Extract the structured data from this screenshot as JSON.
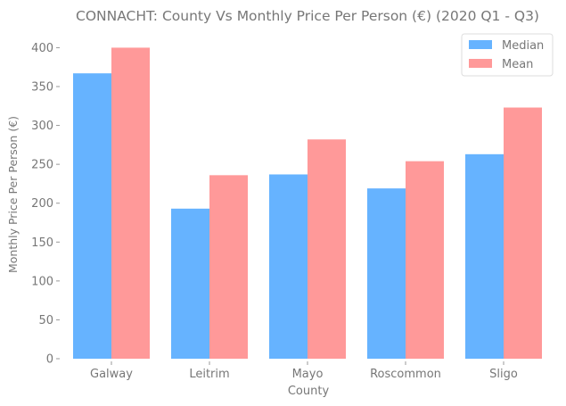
{
  "chart_data": {
    "type": "bar",
    "title": "CONNACHT: County Vs Monthly Price Per Person (€) (2020 Q1 - Q3)",
    "xlabel": "County",
    "ylabel": "Monthly Price Per Person (€)",
    "categories": [
      "Galway",
      "Leitrim",
      "Mayo",
      "Roscommon",
      "Sligo"
    ],
    "series": [
      {
        "name": "Median",
        "color": "#66b3ff",
        "values": [
          367,
          193,
          237,
          219,
          263
        ]
      },
      {
        "name": "Mean",
        "color": "#ff9999",
        "values": [
          400,
          236,
          282,
          254,
          323
        ]
      }
    ],
    "ylim": [
      0,
      420
    ],
    "yticks": [
      0,
      50,
      100,
      150,
      200,
      250,
      300,
      350,
      400
    ],
    "grid": false,
    "legend_position": "top-right"
  }
}
